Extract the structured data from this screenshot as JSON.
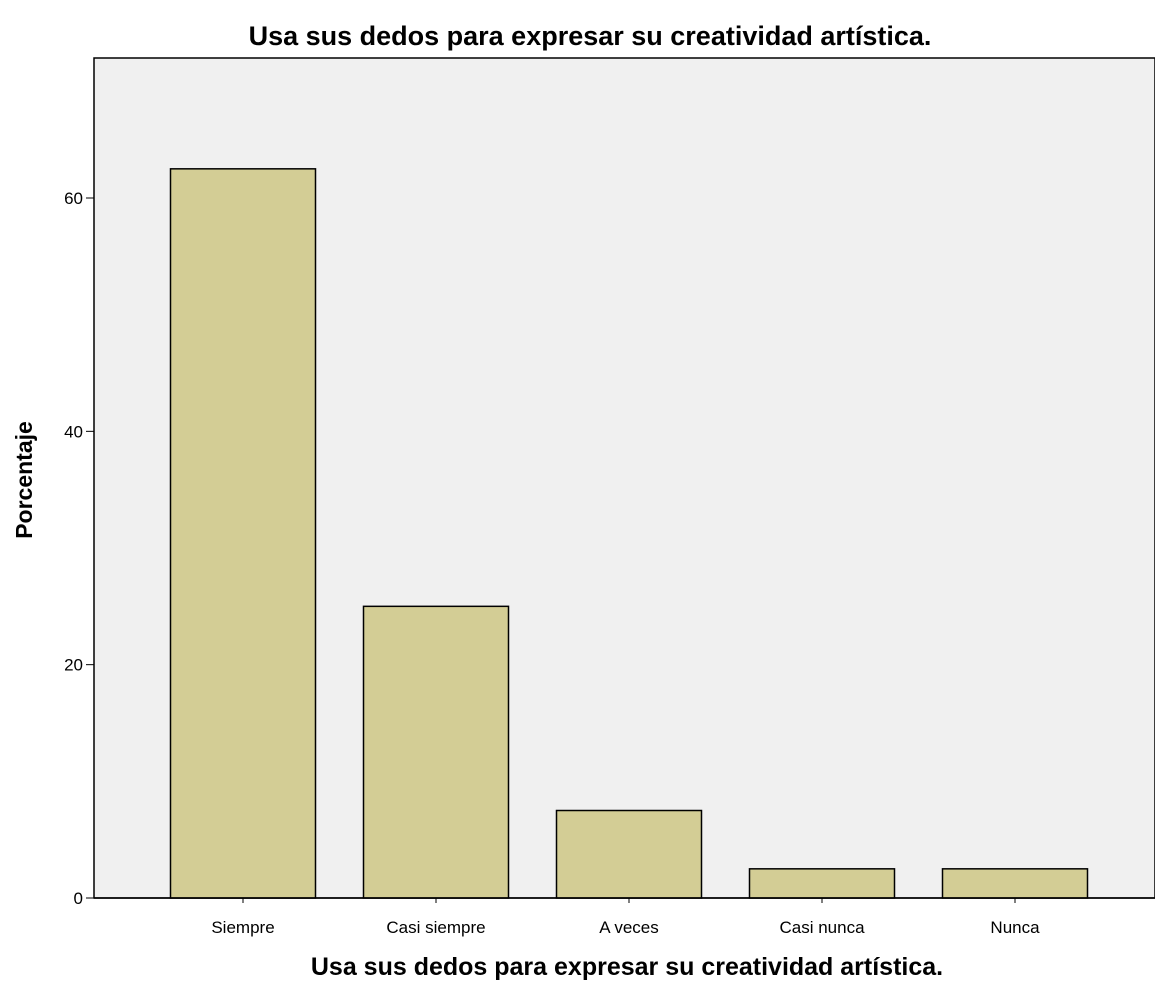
{
  "chart_data": {
    "type": "bar",
    "title": "Usa sus dedos para expresar su creatividad artística.",
    "xlabel": "Usa sus dedos para expresar su creatividad artística.",
    "ylabel": "Porcentaje",
    "categories": [
      "Siempre",
      "Casi siempre",
      "A veces",
      "Casi nunca",
      "Nunca"
    ],
    "values": [
      62.5,
      25.0,
      7.5,
      2.5,
      2.5
    ],
    "ylim": [
      0,
      72
    ],
    "yticks": [
      0,
      20,
      40,
      60
    ],
    "ytick_labels": [
      "0",
      "20",
      "40",
      "60"
    ],
    "grid": false,
    "colors": {
      "bar_fill": "#d3cd95",
      "bar_stroke": "#000000",
      "plot_background": "#f0f0f0",
      "page_background": "#ffffff"
    }
  }
}
